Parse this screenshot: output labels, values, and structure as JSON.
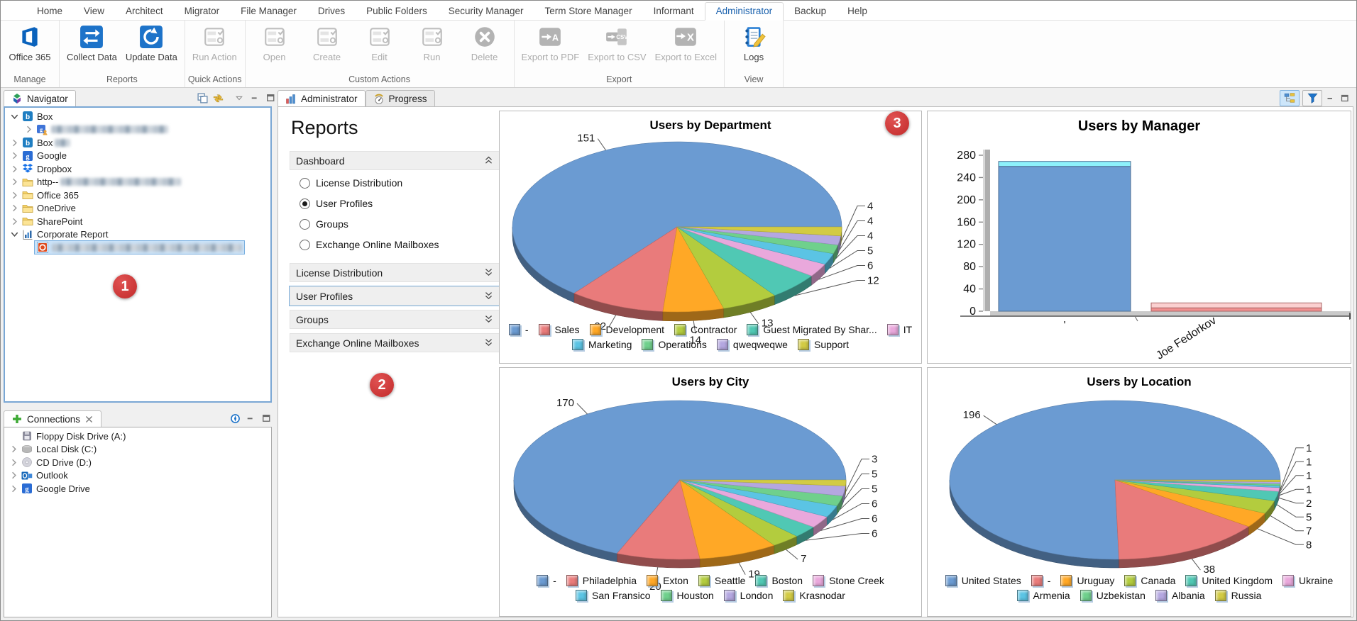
{
  "ribbon": {
    "tabs": [
      {
        "label": "Home",
        "active": false
      },
      {
        "label": "View",
        "active": false
      },
      {
        "label": "Architect",
        "active": false
      },
      {
        "label": "Migrator",
        "active": false
      },
      {
        "label": "File Manager",
        "active": false
      },
      {
        "label": "Drives",
        "active": false
      },
      {
        "label": "Public Folders",
        "active": false
      },
      {
        "label": "Security Manager",
        "active": false
      },
      {
        "label": "Term Store Manager",
        "active": false
      },
      {
        "label": "Informant",
        "active": false
      },
      {
        "label": "Administrator",
        "active": true
      },
      {
        "label": "Backup",
        "active": false
      },
      {
        "label": "Help",
        "active": false
      }
    ],
    "groups": [
      {
        "label": "Manage",
        "buttons": [
          {
            "label": "Office 365",
            "icon": "office365-icon",
            "enabled": true
          }
        ]
      },
      {
        "label": "Reports",
        "buttons": [
          {
            "label": "Collect Data",
            "icon": "collect-data-icon",
            "enabled": true
          },
          {
            "label": "Update Data",
            "icon": "update-data-icon",
            "enabled": true
          }
        ]
      },
      {
        "label": "Quick Actions",
        "buttons": [
          {
            "label": "Run Action",
            "icon": "run-action-icon",
            "enabled": false
          }
        ]
      },
      {
        "label": "Custom Actions",
        "buttons": [
          {
            "label": "Open",
            "icon": "open-icon",
            "enabled": false
          },
          {
            "label": "Create",
            "icon": "create-icon",
            "enabled": false
          },
          {
            "label": "Edit",
            "icon": "edit-icon",
            "enabled": false
          },
          {
            "label": "Run",
            "icon": "run-icon",
            "enabled": false
          },
          {
            "label": "Delete",
            "icon": "delete-icon",
            "enabled": false
          }
        ]
      },
      {
        "label": "Export",
        "buttons": [
          {
            "label": "Export to PDF",
            "icon": "export-pdf-icon",
            "enabled": false
          },
          {
            "label": "Export to CSV",
            "icon": "export-csv-icon",
            "enabled": false
          },
          {
            "label": "Export to Excel",
            "icon": "export-excel-icon",
            "enabled": false
          }
        ]
      },
      {
        "label": "View",
        "buttons": [
          {
            "label": "Logs",
            "icon": "logs-icon",
            "enabled": true
          }
        ]
      }
    ]
  },
  "navigator": {
    "title": "Navigator",
    "items": [
      {
        "label": "Box",
        "icon": "box-icon",
        "indent": 0,
        "expander": "expanded"
      },
      {
        "redacted": true,
        "redacted_width": 165,
        "icon": "account-icon",
        "indent": 1,
        "expander": "collapsed"
      },
      {
        "label": "Box",
        "redacted_suffix": 22,
        "icon": "box-icon",
        "indent": 0,
        "expander": "collapsed"
      },
      {
        "label": "Google",
        "icon": "google-icon",
        "indent": 0,
        "expander": "collapsed"
      },
      {
        "label": "Dropbox",
        "icon": "dropbox-icon",
        "indent": 0,
        "expander": "collapsed"
      },
      {
        "label": "http--",
        "redacted_suffix": 170,
        "icon": "folder-icon",
        "indent": 0,
        "expander": "collapsed"
      },
      {
        "label": "Office 365",
        "icon": "folder-icon",
        "indent": 0,
        "expander": "collapsed"
      },
      {
        "label": "OneDrive",
        "icon": "folder-icon",
        "indent": 0,
        "expander": "collapsed"
      },
      {
        "label": "SharePoint",
        "icon": "folder-icon",
        "indent": 0,
        "expander": "collapsed"
      },
      {
        "label": "Corporate Report",
        "icon": "report-icon",
        "indent": 0,
        "expander": "expanded"
      },
      {
        "redacted": true,
        "redacted_width": 268,
        "icon": "office-file-icon",
        "indent": 1,
        "expander": "none",
        "selected": true
      }
    ]
  },
  "connections": {
    "title": "Connections",
    "items": [
      {
        "label": "Floppy Disk Drive (A:)",
        "icon": "floppy-icon",
        "expander": "none"
      },
      {
        "label": "Local Disk (C:)",
        "icon": "disk-icon",
        "expander": "collapsed"
      },
      {
        "label": "CD Drive (D:)",
        "icon": "cd-icon",
        "expander": "collapsed"
      },
      {
        "label": "Outlook",
        "icon": "outlook-icon",
        "expander": "collapsed"
      },
      {
        "label": "Google Drive",
        "icon": "gdrive-icon",
        "expander": "collapsed"
      }
    ]
  },
  "main": {
    "tabs": [
      {
        "label": "Administrator",
        "icon": "bar-chart-icon",
        "active": true
      },
      {
        "label": "Progress",
        "icon": "gauge-icon",
        "active": false
      }
    ],
    "reports": {
      "title": "Reports",
      "sections": [
        {
          "label": "Dashboard",
          "expanded": true,
          "options": [
            {
              "label": "License Distribution",
              "selected": false
            },
            {
              "label": "User Profiles",
              "selected": true
            },
            {
              "label": "Groups",
              "selected": false
            },
            {
              "label": "Exchange Online Mailboxes",
              "selected": false
            }
          ]
        },
        {
          "label": "License Distribution",
          "expanded": false
        },
        {
          "label": "User Profiles",
          "expanded": false,
          "focused": true
        },
        {
          "label": "Groups",
          "expanded": false
        },
        {
          "label": "Exchange Online Mailboxes",
          "expanded": false
        }
      ]
    }
  },
  "markers": [
    {
      "label": "1"
    },
    {
      "label": "2"
    },
    {
      "label": "3"
    }
  ],
  "chart_data": [
    {
      "type": "pie",
      "title": "Users by Department",
      "legend_position": "bottom",
      "series": [
        {
          "label": "-",
          "value": 151,
          "color": "#6B9BD2"
        },
        {
          "label": "Sales",
          "value": 22,
          "color": "#E97B7B"
        },
        {
          "label": "Development",
          "value": 14,
          "color": "#FFA826"
        },
        {
          "label": "Contractor",
          "value": 13,
          "color": "#B3CC3E"
        },
        {
          "label": "Guest Migrated By Shar...",
          "value": 12,
          "color": "#50C8B4"
        },
        {
          "label": "IT",
          "value": 6,
          "color": "#E9A8DC"
        },
        {
          "label": "Marketing",
          "value": 5,
          "color": "#5BC4E4"
        },
        {
          "label": "Operations",
          "value": 4,
          "color": "#6FD08C"
        },
        {
          "label": "qweqweqwe",
          "value": 4,
          "color": "#B4A7E0"
        },
        {
          "label": "Support",
          "value": 4,
          "color": "#D2CB44"
        }
      ]
    },
    {
      "type": "bar",
      "title": "Users by Manager",
      "categories": [
        "'",
        "Joe Fedorkov"
      ],
      "values": [
        260,
        6
      ],
      "bar_colors": [
        "#6B9BD2",
        "#F09090"
      ],
      "cap_colors": [
        "#8DF1FB",
        "#FBD0D0"
      ],
      "ylim": [
        0,
        280
      ],
      "yticks": [
        0,
        40,
        80,
        120,
        160,
        200,
        240,
        280
      ],
      "grid": false
    },
    {
      "type": "pie",
      "title": "Users by City",
      "legend_position": "bottom",
      "series": [
        {
          "label": "-",
          "value": 170,
          "color": "#6B9BD2"
        },
        {
          "label": "Philadelphia",
          "value": 20,
          "color": "#E97B7B"
        },
        {
          "label": "Exton",
          "value": 19,
          "color": "#FFA826"
        },
        {
          "label": "Seattle",
          "value": 7,
          "color": "#B3CC3E"
        },
        {
          "label": "Boston",
          "value": 6,
          "color": "#50C8B4"
        },
        {
          "label": "Stone Creek",
          "value": 6,
          "color": "#E9A8DC"
        },
        {
          "label": "San Fransico",
          "value": 6,
          "color": "#5BC4E4"
        },
        {
          "label": "Houston",
          "value": 5,
          "color": "#6FD08C"
        },
        {
          "label": "London",
          "value": 5,
          "color": "#B4A7E0"
        },
        {
          "label": "Krasnodar",
          "value": 3,
          "color": "#D2CB44"
        }
      ]
    },
    {
      "type": "pie",
      "title": "Users by Location",
      "legend_position": "bottom",
      "series": [
        {
          "label": "United States",
          "value": 196,
          "color": "#6B9BD2"
        },
        {
          "label": "-",
          "value": 38,
          "color": "#E97B7B"
        },
        {
          "label": "Uruguay",
          "value": 8,
          "color": "#FFA826"
        },
        {
          "label": "Canada",
          "value": 7,
          "color": "#B3CC3E"
        },
        {
          "label": "United Kingdom",
          "value": 5,
          "color": "#50C8B4"
        },
        {
          "label": "Ukraine",
          "value": 2,
          "color": "#E9A8DC"
        },
        {
          "label": "Armenia",
          "value": 1,
          "color": "#5BC4E4"
        },
        {
          "label": "Uzbekistan",
          "value": 1,
          "color": "#6FD08C"
        },
        {
          "label": "Albania",
          "value": 1,
          "color": "#B4A7E0"
        },
        {
          "label": "Russia",
          "value": 1,
          "color": "#D2CB44"
        }
      ]
    }
  ]
}
